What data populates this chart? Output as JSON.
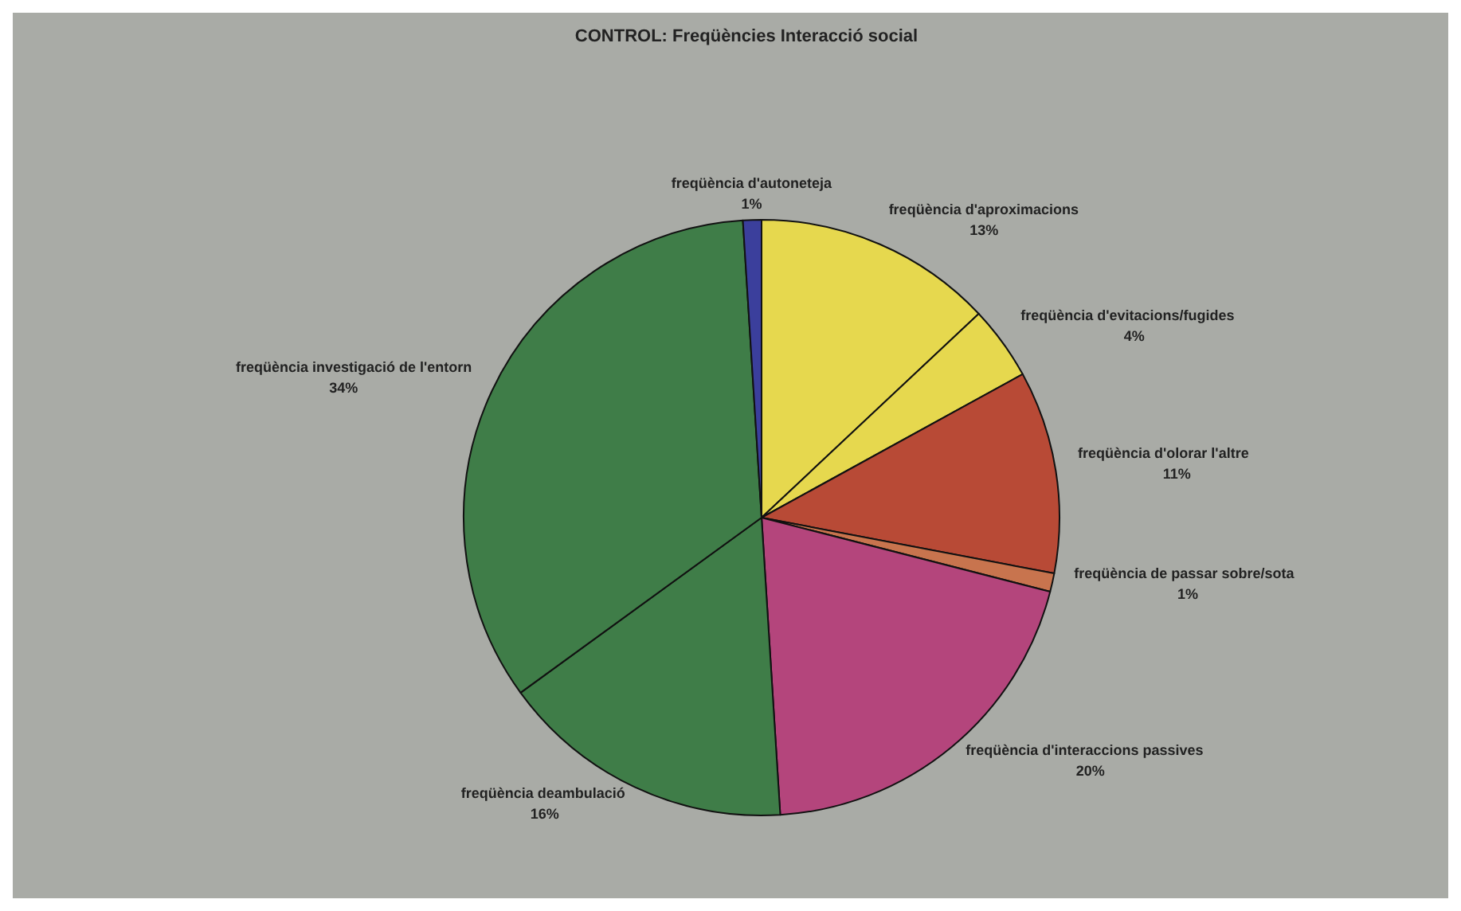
{
  "chart_data": {
    "type": "pie",
    "title": "CONTROL: Freqüències Interacció social",
    "categories": [
      "freqüència d'aproximacions",
      "freqüència d'evitacions/fugides",
      "freqüència d'olorar l'altre",
      "freqüència de passar sobre/sota",
      "freqüència d'interaccions passives",
      "freqüència deambulació",
      "freqüència investigació de l'entorn",
      "freqüència d'autoneteja"
    ],
    "values": [
      13,
      4,
      11,
      1,
      20,
      16,
      34,
      1
    ],
    "value_labels": [
      "13%",
      "4%",
      "11%",
      "1%",
      "20%",
      "16%",
      "34%",
      "1%"
    ],
    "colors": [
      "#e6d84e",
      "#e6d84e",
      "#b84a36",
      "#c8744e",
      "#b4457c",
      "#3f7d48",
      "#3f7d48",
      "#3b3f9c"
    ]
  }
}
